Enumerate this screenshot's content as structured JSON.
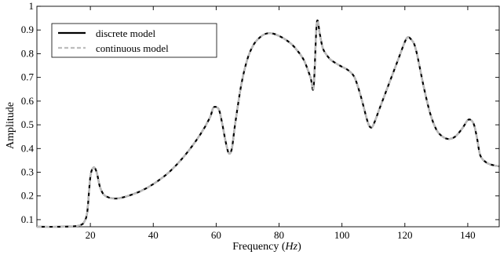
{
  "chart_data": {
    "type": "line",
    "title": "",
    "xlabel": "Frequency",
    "xlabel_unit": "Hz",
    "ylabel": "Amplitude",
    "xlim": [
      3,
      150
    ],
    "ylim": [
      0.07,
      1.0
    ],
    "xticks": [
      20,
      40,
      60,
      80,
      100,
      120,
      140
    ],
    "yticks": [
      0.1,
      0.2,
      0.3,
      0.4,
      0.5,
      0.6,
      0.7,
      0.8,
      0.9,
      1
    ],
    "ytick_labels": [
      "0.1",
      "0.2",
      "0.3",
      "0.4",
      "0.5",
      "0.6",
      "0.7",
      "0.8",
      "0.9",
      "1"
    ],
    "grid": false,
    "legend_position": "top-left",
    "series": [
      {
        "name": "discrete model",
        "color": "#000000",
        "style": "solid",
        "x": [
          3,
          10,
          15,
          17,
          18,
          19,
          20,
          21,
          22,
          23,
          24,
          25,
          27,
          29,
          32,
          36,
          40,
          45,
          50,
          55,
          58,
          59,
          60,
          61,
          62,
          63,
          64,
          65,
          66,
          68,
          70,
          72,
          74,
          76,
          78,
          80,
          82,
          84,
          86,
          88,
          90,
          91,
          92,
          93,
          94,
          96,
          98,
          100,
          102,
          104,
          106,
          108,
          109,
          110,
          112,
          114,
          116,
          118,
          120,
          121,
          122,
          123,
          124,
          126,
          128,
          130,
          132,
          134,
          136,
          138,
          139,
          140,
          141,
          142,
          143,
          144,
          146,
          148,
          150
        ],
        "y": [
          0.07,
          0.07,
          0.072,
          0.078,
          0.09,
          0.13,
          0.28,
          0.32,
          0.3,
          0.24,
          0.21,
          0.198,
          0.19,
          0.19,
          0.2,
          0.22,
          0.25,
          0.3,
          0.37,
          0.46,
          0.53,
          0.57,
          0.575,
          0.56,
          0.5,
          0.43,
          0.38,
          0.4,
          0.5,
          0.67,
          0.78,
          0.84,
          0.87,
          0.885,
          0.885,
          0.875,
          0.86,
          0.84,
          0.81,
          0.77,
          0.7,
          0.66,
          0.93,
          0.88,
          0.82,
          0.78,
          0.76,
          0.745,
          0.73,
          0.7,
          0.62,
          0.52,
          0.49,
          0.5,
          0.57,
          0.64,
          0.71,
          0.78,
          0.85,
          0.87,
          0.86,
          0.84,
          0.79,
          0.66,
          0.55,
          0.48,
          0.45,
          0.44,
          0.45,
          0.48,
          0.5,
          0.52,
          0.52,
          0.5,
          0.44,
          0.37,
          0.34,
          0.33,
          0.325
        ]
      },
      {
        "name": "continuous model",
        "color": "#bdbdbd",
        "style": "dashed",
        "x": [
          3,
          10,
          15,
          17,
          18,
          19,
          20,
          21,
          22,
          23,
          24,
          25,
          27,
          29,
          32,
          36,
          40,
          45,
          50,
          55,
          58,
          59,
          60,
          61,
          62,
          63,
          64,
          65,
          66,
          68,
          70,
          72,
          74,
          76,
          78,
          80,
          82,
          84,
          86,
          88,
          90,
          91,
          92,
          93,
          94,
          96,
          98,
          100,
          102,
          104,
          106,
          108,
          109,
          110,
          112,
          114,
          116,
          118,
          120,
          121,
          122,
          123,
          124,
          126,
          128,
          130,
          132,
          134,
          136,
          138,
          139,
          140,
          141,
          142,
          143,
          144,
          146,
          148,
          150
        ],
        "y": [
          0.07,
          0.07,
          0.072,
          0.078,
          0.09,
          0.13,
          0.28,
          0.32,
          0.3,
          0.24,
          0.21,
          0.198,
          0.19,
          0.19,
          0.2,
          0.22,
          0.25,
          0.3,
          0.37,
          0.46,
          0.53,
          0.57,
          0.575,
          0.56,
          0.5,
          0.43,
          0.38,
          0.4,
          0.5,
          0.67,
          0.78,
          0.84,
          0.87,
          0.885,
          0.885,
          0.875,
          0.86,
          0.84,
          0.81,
          0.77,
          0.7,
          0.66,
          0.93,
          0.88,
          0.82,
          0.78,
          0.76,
          0.745,
          0.73,
          0.7,
          0.62,
          0.52,
          0.49,
          0.5,
          0.57,
          0.64,
          0.71,
          0.78,
          0.85,
          0.87,
          0.86,
          0.84,
          0.79,
          0.66,
          0.55,
          0.48,
          0.45,
          0.44,
          0.45,
          0.48,
          0.5,
          0.52,
          0.52,
          0.5,
          0.44,
          0.37,
          0.34,
          0.33,
          0.325
        ]
      }
    ]
  }
}
